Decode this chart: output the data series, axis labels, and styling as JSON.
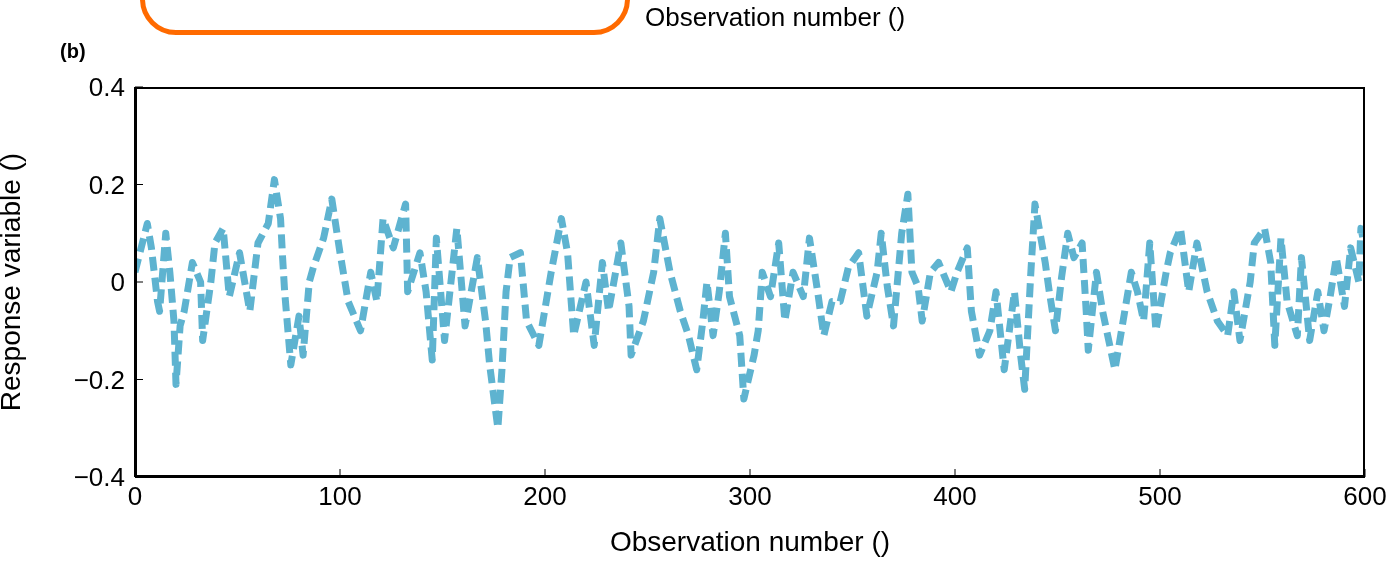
{
  "chart_data": {
    "type": "line",
    "xlabel": "Observation number ()",
    "ylabel": "Response variable ()",
    "annotations": [
      "(b)",
      "Observation number ()"
    ],
    "xlim": [
      0,
      600
    ],
    "xticks": [
      0,
      100,
      200,
      300,
      400,
      500,
      600
    ],
    "ylim": [
      -0.4,
      0.4
    ],
    "yticks": [
      {
        "value": -0.4,
        "label": "−0.4"
      },
      {
        "value": -0.2,
        "label": "−0.2"
      },
      0,
      0.2,
      0.4
    ],
    "grid": false,
    "legend": false,
    "marker": "none",
    "line_style": "dashed",
    "series": [
      {
        "color": "#5eb3d0",
        "x": [
          0,
          6,
          8,
          11,
          12,
          15,
          17,
          19,
          20,
          22,
          24,
          28,
          32,
          33,
          37,
          39,
          43,
          46,
          51,
          56,
          60,
          65,
          68,
          71,
          72,
          73,
          76,
          80,
          82,
          85,
          87,
          92,
          96,
          100,
          104,
          110,
          115,
          118,
          121,
          126,
          132,
          133,
          139,
          142,
          145,
          147,
          151,
          157,
          161,
          167,
          171,
          173,
          177,
          179,
          181,
          183,
          188,
          191,
          197,
          203,
          208,
          211,
          214,
          220,
          224,
          228,
          231,
          237,
          241,
          242,
          248,
          253,
          256,
          261,
          266,
          270,
          274,
          277,
          279,
          282,
          285,
          288,
          290,
          295,
          297,
          302,
          304,
          306,
          310,
          314,
          317,
          321,
          326,
          329,
          333,
          336,
          340,
          344,
          348,
          353,
          357,
          362,
          364,
          367,
          370,
          374,
          377,
          379,
          382,
          384,
          388,
          392,
          398,
          401,
          406,
          408,
          412,
          417,
          420,
          424,
          429,
          432,
          434,
          437,
          439,
          444,
          446,
          449,
          452,
          455,
          458,
          462,
          464,
          465,
          469,
          472,
          478,
          482,
          486,
          489,
          492,
          495,
          498,
          503,
          505,
          510,
          514,
          518,
          523,
          528,
          533,
          536,
          539,
          544,
          546,
          551,
          554,
          556,
          559,
          562,
          567,
          569,
          573,
          577,
          580,
          583,
          586,
          590,
          593,
          597,
          598,
          600
        ],
        "values": [
          0.02,
          0.12,
          0.07,
          -0.04,
          -0.06,
          0.1,
          0.02,
          -0.08,
          -0.21,
          -0.09,
          -0.06,
          0.04,
          0.0,
          -0.12,
          0.0,
          0.08,
          0.11,
          -0.03,
          0.06,
          -0.06,
          0.08,
          0.12,
          0.21,
          0.13,
          0.05,
          -0.02,
          -0.17,
          -0.07,
          -0.15,
          0.0,
          0.03,
          0.09,
          0.17,
          0.06,
          -0.04,
          -0.1,
          0.02,
          -0.04,
          0.13,
          0.07,
          0.16,
          -0.02,
          0.06,
          -0.02,
          -0.16,
          0.09,
          -0.12,
          0.11,
          -0.09,
          0.05,
          -0.08,
          -0.17,
          -0.3,
          -0.18,
          -0.02,
          0.05,
          0.06,
          -0.08,
          -0.13,
          0.02,
          0.13,
          0.06,
          -0.11,
          0.0,
          -0.13,
          0.04,
          -0.06,
          0.08,
          -0.05,
          -0.15,
          -0.08,
          0.02,
          0.13,
          0.02,
          -0.06,
          -0.11,
          -0.18,
          -0.08,
          0.0,
          -0.11,
          -0.02,
          0.1,
          -0.03,
          -0.11,
          -0.24,
          -0.15,
          -0.1,
          0.02,
          -0.03,
          0.08,
          -0.08,
          0.02,
          -0.03,
          0.09,
          -0.02,
          -0.11,
          -0.04,
          -0.04,
          0.03,
          0.06,
          -0.07,
          0.02,
          0.1,
          -0.01,
          -0.09,
          0.1,
          0.18,
          0.02,
          -0.01,
          -0.08,
          0.02,
          0.04,
          -0.02,
          0.02,
          0.07,
          -0.06,
          -0.15,
          -0.1,
          -0.02,
          -0.18,
          -0.02,
          -0.15,
          -0.22,
          0.02,
          0.16,
          0.04,
          -0.02,
          -0.1,
          0.01,
          0.1,
          0.05,
          0.08,
          -0.06,
          -0.14,
          0.02,
          -0.06,
          -0.18,
          -0.08,
          0.02,
          -0.02,
          -0.08,
          0.08,
          -0.1,
          0.02,
          0.06,
          0.11,
          -0.02,
          0.08,
          -0.02,
          -0.08,
          -0.11,
          -0.02,
          -0.12,
          0.0,
          0.08,
          0.11,
          0.04,
          -0.13,
          0.09,
          -0.04,
          -0.11,
          0.05,
          -0.12,
          -0.02,
          -0.1,
          -0.03,
          0.05,
          -0.05,
          0.07,
          0.0,
          0.11,
          0.07
        ]
      }
    ]
  }
}
